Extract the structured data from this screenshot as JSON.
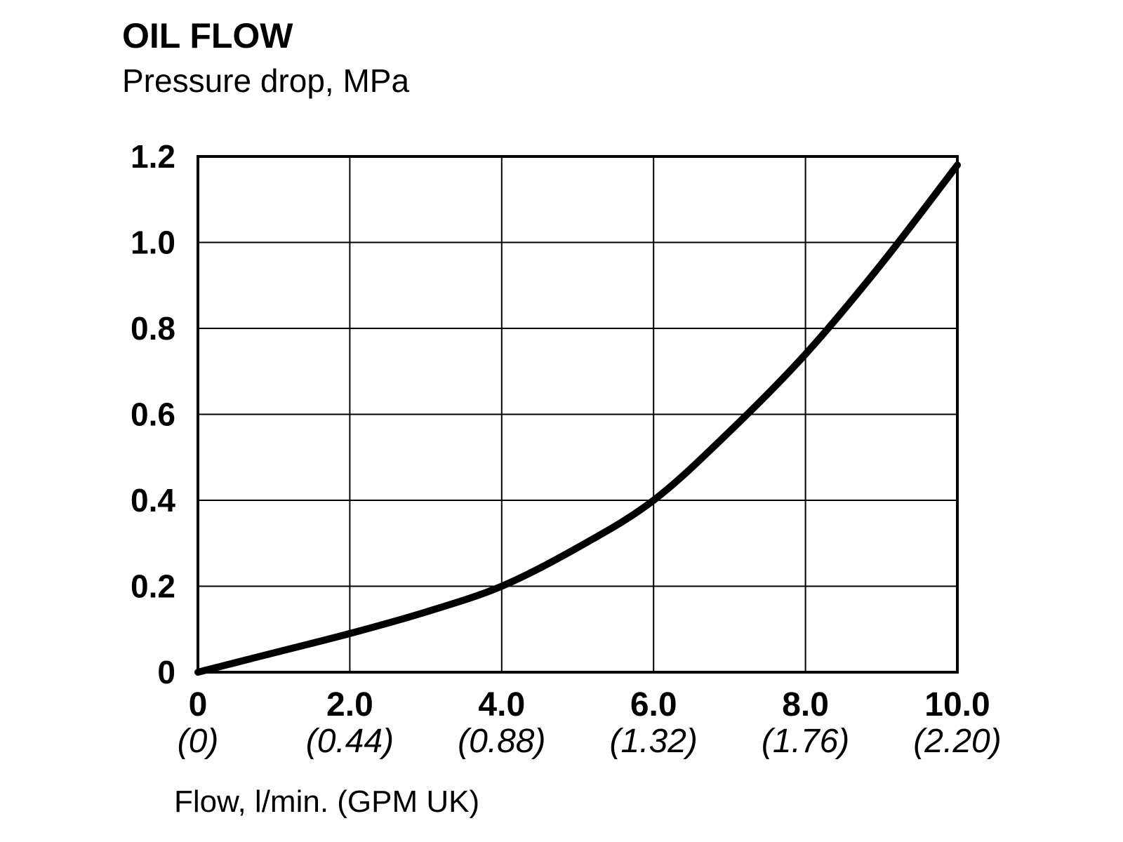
{
  "chart_data": {
    "type": "line",
    "title": "OIL FLOW",
    "subtitle": "Pressure drop, MPa",
    "xlabel": "Flow, l/min. (GPM UK)",
    "ylabel": "",
    "xlim": [
      0,
      10
    ],
    "ylim": [
      0,
      1.2
    ],
    "grid": true,
    "legend": "none",
    "x_ticks": [
      {
        "value": 0,
        "label": "0",
        "sublabel": "(0)"
      },
      {
        "value": 2,
        "label": "2.0",
        "sublabel": "(0.44)"
      },
      {
        "value": 4,
        "label": "4.0",
        "sublabel": "(0.88)"
      },
      {
        "value": 6,
        "label": "6.0",
        "sublabel": "(1.32)"
      },
      {
        "value": 8,
        "label": "8.0",
        "sublabel": "(1.76)"
      },
      {
        "value": 10,
        "label": "10.0",
        "sublabel": "(2.20)"
      }
    ],
    "y_ticks": [
      {
        "value": 0,
        "label": "0"
      },
      {
        "value": 0.2,
        "label": "0.2"
      },
      {
        "value": 0.4,
        "label": "0.4"
      },
      {
        "value": 0.6,
        "label": "0.6"
      },
      {
        "value": 0.8,
        "label": "0.8"
      },
      {
        "value": 1.0,
        "label": "1.0"
      },
      {
        "value": 1.2,
        "label": "1.2"
      }
    ],
    "series": [
      {
        "color": "#000000",
        "x": [
          0,
          1,
          2,
          3,
          4,
          5,
          6,
          7,
          8,
          9,
          10
        ],
        "y": [
          0,
          0.045,
          0.09,
          0.14,
          0.2,
          0.29,
          0.4,
          0.56,
          0.74,
          0.95,
          1.18
        ]
      }
    ]
  }
}
